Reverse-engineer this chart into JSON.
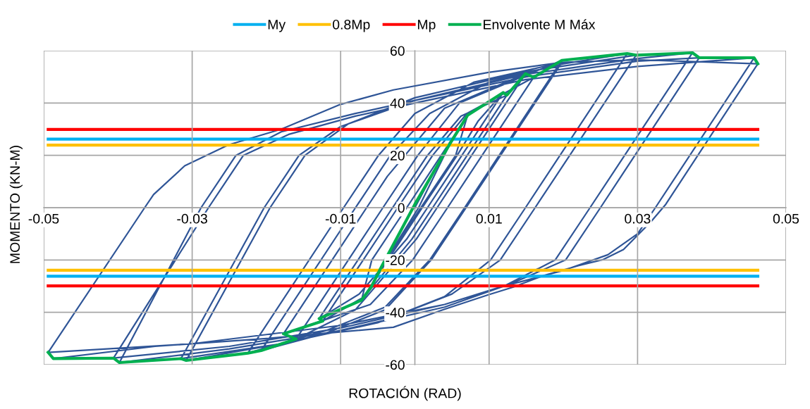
{
  "chart_data": {
    "type": "line",
    "xlabel": "ROTACIÓN (RAD)",
    "ylabel": "MOMENTO (KN-M)",
    "xlim": [
      -0.05,
      0.05
    ],
    "xticks": [
      -0.05,
      -0.03,
      -0.01,
      0.01,
      0.03,
      0.05
    ],
    "ylim": [
      -60,
      60
    ],
    "yticks": [
      -60,
      -40,
      -20,
      0,
      20,
      40,
      60
    ],
    "grid": true,
    "legend": "top",
    "marker": "none",
    "line_style": "solid",
    "series": [
      {
        "color": "#2f5597",
        "x": [
          0,
          0.003,
          0.0048,
          0.0005,
          -0.0045,
          0.0008,
          0.0055,
          0.0071,
          -0.0011,
          -0.0058,
          -0.0072,
          0.001,
          0.0057,
          0.0085,
          0.0119,
          0.0017,
          -0.0011,
          -0.0075,
          -0.0129,
          -0.003,
          0.0017,
          0.0062,
          0.0124,
          0.0024,
          -0.0004,
          -0.0068,
          -0.0124,
          -0.0023,
          0.0024,
          0.007,
          0.016,
          0.0044,
          -0.0003,
          -0.006,
          -0.0177,
          -0.0065,
          -0.0037,
          0.004,
          0.0149,
          0.003,
          0.0002,
          -0.008,
          -0.016,
          -0.0043,
          0.0004,
          0.006,
          0.0198,
          0.0067,
          0.002,
          -0.004,
          -0.012,
          -0.0225,
          -0.0096,
          -0.0049,
          0.0,
          0.008,
          0.0198,
          0.0069,
          0.0022,
          -0.004,
          -0.012,
          -0.0207,
          -0.008,
          -0.0033,
          0.002,
          0.01,
          0.02,
          0.0286,
          0.0149,
          0.0102,
          0.004,
          -0.005,
          -0.018,
          -0.0308,
          -0.0195,
          -0.0148,
          -0.009,
          0.0,
          0.015,
          0.0298,
          0.0162,
          0.0115,
          0.005,
          -0.004,
          -0.018,
          -0.0315,
          -0.0203,
          -0.0156,
          -0.01,
          0.0,
          0.015,
          0.03,
          0.0374,
          0.0236,
          0.0189,
          0.012,
          0.004,
          -0.01,
          -0.025,
          -0.0398,
          -0.0288,
          -0.0241,
          -0.018,
          -0.008,
          0.0,
          0.015,
          0.03,
          0.0383,
          0.025,
          0.0203,
          0.013,
          0.004,
          -0.01,
          -0.025,
          -0.0406,
          -0.0278,
          -0.0231,
          -0.017,
          -0.008,
          0.0,
          0.015,
          0.03,
          0.0457,
          0.0324,
          0.03,
          0.026,
          0.02,
          0.012,
          0.004,
          -0.01,
          -0.03,
          -0.0494,
          -0.0364,
          -0.0352,
          -0.031,
          -0.0251,
          -0.018,
          -0.0102,
          -0.0029,
          0.0099,
          0.0198,
          0.03,
          0.0462,
          0.0338,
          0.0318,
          0.0281,
          0.0254,
          0.022,
          0.0173,
          0.0132,
          0.0099,
          0.0038,
          -0.0029,
          -0.02,
          -0.035,
          -0.0487
        ],
        "values": [
          0,
          16,
          24.8,
          0,
          -22.6,
          0,
          20,
          35.3,
          0,
          -20,
          -35.4,
          0,
          20,
          33,
          44,
          0,
          -12,
          -33,
          -42.4,
          0,
          20,
          35,
          43,
          0,
          -12,
          -34,
          -43.3,
          0,
          20,
          36,
          49.8,
          0,
          -20,
          -37,
          -48.2,
          0,
          12,
          38,
          51.2,
          0,
          -12,
          -39,
          -50.2,
          0,
          20,
          40,
          56.3,
          0,
          -20,
          -38,
          -47,
          -55.6,
          0,
          20,
          36,
          48,
          55.5,
          0,
          -20,
          -39,
          -48,
          -54.6,
          0,
          20,
          36,
          48,
          55,
          58.9,
          0,
          -20,
          -34,
          -44,
          -52,
          -58.4,
          0,
          20,
          32,
          42,
          52,
          58.3,
          0,
          -20,
          -33,
          -43,
          -52,
          -57.7,
          0,
          20,
          31,
          41,
          51,
          57,
          59.2,
          0,
          -20,
          -30,
          -38,
          -47,
          -54,
          -59.2,
          0,
          20,
          29,
          36,
          41,
          50,
          56,
          57.3,
          0,
          -20,
          -29,
          -37,
          -46,
          -53,
          -57.5,
          0,
          20,
          28,
          35,
          40,
          49,
          54,
          57.3,
          0,
          -10,
          -18,
          -24,
          -30,
          -37,
          -45,
          -52,
          -55.3,
          0,
          5,
          16,
          24,
          30,
          39.3,
          45,
          51.7,
          55.5,
          56.5,
          55,
          1.3,
          -5.4,
          -16,
          -19.8,
          -22.2,
          -26,
          -30.4,
          -33.3,
          -39,
          -45.7,
          -50,
          -53,
          -57.7
        ]
      },
      {
        "name": "My",
        "color": "#00b0f0",
        "x": [
          -0.0494,
          0.0462
        ],
        "values": [
          26.2,
          26.2
        ]
      },
      {
        "color": "#00b0f0",
        "x": [
          -0.0494,
          0.0462
        ],
        "values": [
          -26.2,
          -26.2
        ]
      },
      {
        "name": "0.8Mp",
        "color": "#ffc000",
        "x": [
          -0.0494,
          0.0462
        ],
        "values": [
          23.9,
          23.9
        ]
      },
      {
        "color": "#ffc000",
        "x": [
          -0.0494,
          0.0462
        ],
        "values": [
          -23.9,
          -23.9
        ]
      },
      {
        "name": "Mp",
        "color": "#ff0000",
        "x": [
          -0.0494,
          0.0462
        ],
        "values": [
          29.9,
          29.9
        ]
      },
      {
        "color": "#ff0000",
        "x": [
          -0.0494,
          0.0462
        ],
        "values": [
          -29.9,
          -29.9
        ]
      },
      {
        "name": "Envolvente M Máx",
        "color": "#00b050",
        "x": [
          -0.0494,
          -0.0487,
          -0.0406,
          -0.0398,
          -0.0315,
          -0.0308,
          -0.0225,
          -0.0207,
          -0.016,
          -0.0177,
          -0.0124,
          -0.0129,
          -0.0072,
          -0.0059,
          -0.0045,
          0.0,
          0.0048,
          0.0071,
          0.0119,
          0.0124,
          0.0149,
          0.016,
          0.0198,
          0.0286,
          0.0298,
          0.0374,
          0.0383,
          0.0457,
          0.0462
        ],
        "values": [
          -55.3,
          -57.7,
          -57.5,
          -59.2,
          -57.7,
          -58.4,
          -55.6,
          -54.6,
          -50.2,
          -48.2,
          -43.3,
          -42.4,
          -35.4,
          -30.4,
          -22.6,
          1.3,
          24.8,
          35.3,
          44,
          43,
          51.2,
          49.8,
          56.3,
          58.9,
          58.3,
          59.2,
          57.3,
          57.3,
          55.0
        ]
      }
    ]
  }
}
